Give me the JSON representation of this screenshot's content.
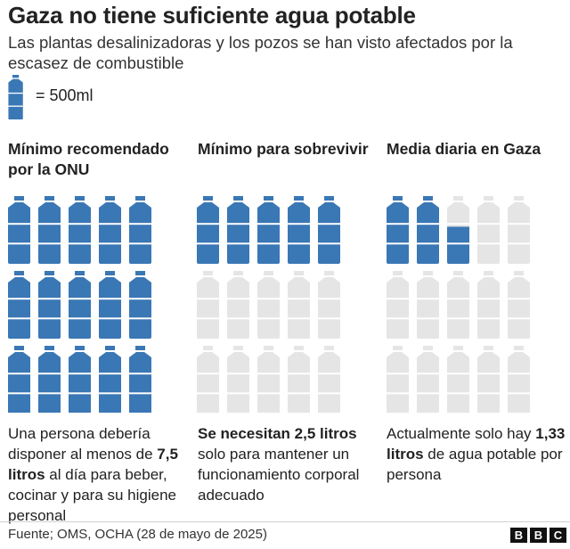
{
  "header": {
    "title": "Gaza no tiene suficiente agua potable",
    "subtitle": "Las plantas desalinizadoras y los pozos se han visto afectados por la escasez de combustible"
  },
  "legend": {
    "label": "= 500ml",
    "unit_liters": 0.5
  },
  "colors": {
    "full": "#3a77b5",
    "empty": "#e5e5e5",
    "text": "#222222"
  },
  "chart_data": {
    "type": "pictogram",
    "unit": "500ml bottle",
    "bottles_per_panel": 15,
    "panels": [
      {
        "title": "Mínimo recomendado por la ONU",
        "liters": 7.5,
        "desc_pre": "Una persona debería disponer al menos de ",
        "desc_bold": "7,5 litros",
        "desc_post": " al día para beber, cocinar y para su higiene personal"
      },
      {
        "title": "Mínimo para sobrevivir",
        "liters": 2.5,
        "desc_pre": "",
        "desc_bold": "Se necesitan 2,5 litros",
        "desc_post": " solo para mantener un funcionamiento corporal adecuado"
      },
      {
        "title": "Media diaria en Gaza",
        "liters": 1.33,
        "desc_pre": "Actualmente solo hay ",
        "desc_bold": "1,33 litros",
        "desc_post": " de agua potable por persona"
      }
    ]
  },
  "footer": {
    "source": "Fuente; OMS, OCHA (28 de mayo de 2025)",
    "logo": [
      "B",
      "B",
      "C"
    ]
  }
}
